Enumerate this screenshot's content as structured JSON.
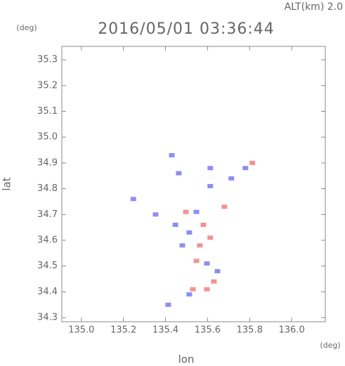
{
  "chart_data": {
    "type": "scatter",
    "title": "2016/05/01 03:36:44",
    "subtitle": "ALT(km) 2.0",
    "y_unit": "(deg)",
    "x_unit": "(deg)",
    "ylabel": "lat",
    "xlabel": "lon",
    "xlim": [
      134.907,
      136.16
    ],
    "ylim": [
      34.284,
      35.352
    ],
    "xticks": [
      {
        "value": 135,
        "label": "135.0"
      },
      135.2,
      135.4,
      135.6,
      135.8,
      {
        "value": 136,
        "label": "136.0"
      }
    ],
    "yticks": [
      34.3,
      34.4,
      34.5,
      34.6,
      34.7,
      34.8,
      {
        "value": 34.9,
        "label": "34.9"
      },
      {
        "value": 35,
        "label": "35.0"
      },
      35.1,
      35.2,
      35.3
    ],
    "series": [
      {
        "color": "#f08080",
        "x": [
          135.58,
          135.563,
          135.597,
          135.68,
          135.547,
          135.613,
          135.813,
          135.497,
          135.63,
          135.53
        ],
        "y": [
          34.66,
          34.58,
          34.41,
          34.73,
          34.52,
          34.61,
          34.9,
          34.71,
          34.44,
          34.41
        ]
      },
      {
        "color": "#7a7aee",
        "x": [
          135.43,
          135.247,
          135.353,
          135.613,
          135.713,
          135.547,
          135.447,
          135.48,
          135.597,
          135.647,
          135.413,
          135.513,
          135.613,
          135.78,
          135.463,
          135.513
        ],
        "y": [
          34.93,
          34.76,
          34.7,
          34.81,
          34.84,
          34.71,
          34.66,
          34.58,
          34.51,
          34.48,
          34.35,
          34.39,
          34.88,
          34.88,
          34.86,
          34.63
        ]
      }
    ]
  }
}
